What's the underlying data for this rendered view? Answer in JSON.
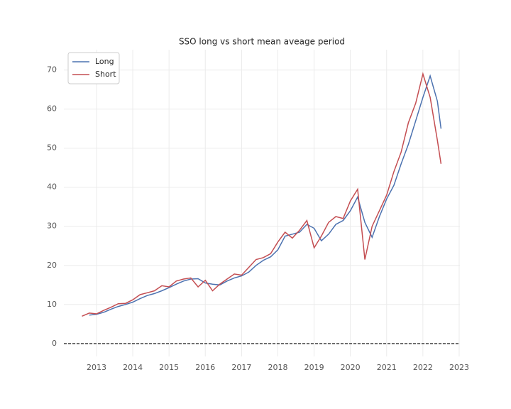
{
  "chart_data": {
    "type": "line",
    "title": "SSO long vs short mean aveage period",
    "x": [
      2012.6,
      2012.8,
      2013.0,
      2013.2,
      2013.4,
      2013.6,
      2013.8,
      2014.0,
      2014.2,
      2014.4,
      2014.6,
      2014.8,
      2015.0,
      2015.2,
      2015.4,
      2015.6,
      2015.8,
      2016.0,
      2016.2,
      2016.4,
      2016.6,
      2016.8,
      2017.0,
      2017.2,
      2017.4,
      2017.6,
      2017.8,
      2018.0,
      2018.2,
      2018.4,
      2018.6,
      2018.8,
      2019.0,
      2019.2,
      2019.4,
      2019.6,
      2019.8,
      2020.0,
      2020.2,
      2020.4,
      2020.6,
      2020.8,
      2021.0,
      2021.2,
      2021.4,
      2021.6,
      2021.8,
      2022.0,
      2022.2,
      2022.4,
      2022.5
    ],
    "series": [
      {
        "name": "Long",
        "color": "#4c72b0",
        "values": [
          null,
          7.3,
          7.5,
          8.0,
          8.8,
          9.5,
          10.0,
          10.6,
          11.5,
          12.3,
          12.8,
          13.5,
          14.3,
          15.2,
          16.0,
          16.5,
          16.6,
          15.5,
          15.2,
          15.0,
          16.0,
          16.8,
          17.3,
          18.3,
          20.0,
          21.3,
          22.2,
          24.0,
          27.5,
          28.0,
          28.5,
          30.5,
          29.5,
          26.3,
          28.0,
          30.5,
          31.5,
          34.0,
          37.5,
          31.0,
          27.2,
          32.5,
          37.0,
          40.5,
          46.0,
          51.0,
          57.0,
          63.0,
          68.5,
          62.0,
          55.0
        ]
      },
      {
        "name": "Short",
        "color": "#c44e52",
        "values": [
          7.0,
          7.8,
          7.6,
          8.5,
          9.3,
          10.2,
          10.3,
          11.2,
          12.5,
          13.0,
          13.5,
          14.8,
          14.5,
          16.0,
          16.5,
          16.8,
          14.5,
          16.2,
          13.5,
          15.2,
          16.5,
          17.8,
          17.5,
          19.5,
          21.5,
          22.0,
          23.0,
          26.0,
          28.5,
          27.0,
          29.0,
          31.5,
          24.5,
          27.5,
          31.0,
          32.5,
          32.0,
          36.5,
          39.5,
          21.5,
          30.0,
          34.0,
          38.0,
          44.0,
          49.0,
          56.5,
          61.5,
          69.0,
          63.0,
          52.0,
          46.0
        ]
      }
    ],
    "xlim": [
      2012.1,
      2023.02
    ],
    "xticks": [
      2013,
      2014,
      2015,
      2016,
      2017,
      2018,
      2019,
      2020,
      2021,
      2022,
      2023
    ],
    "ylim": [
      -3.3,
      75.2
    ],
    "yticks": [
      0,
      10,
      20,
      30,
      40,
      50,
      60,
      70
    ],
    "hline": 0,
    "grid": true,
    "legend": "upper-left"
  }
}
